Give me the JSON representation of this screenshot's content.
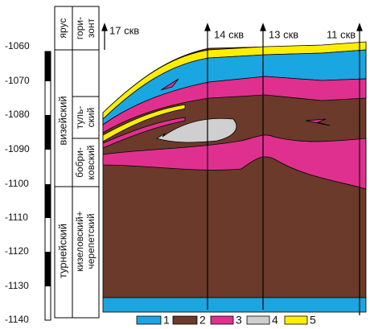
{
  "depth_axis": {
    "labels": [
      "-1060",
      "-1070",
      "-1080",
      "-1090",
      "-1100",
      "-1110",
      "-1120",
      "-1130",
      "-1140"
    ]
  },
  "table": {
    "stage_header": "ярус",
    "horizon_header": [
      "гори-",
      "зонт"
    ],
    "stages": [
      "визейский",
      "турнейский"
    ],
    "horizons": [
      [
        "туль-",
        "ский"
      ],
      [
        "бобри-",
        "ковский"
      ],
      [
        "кизеловский+",
        "черепетский"
      ]
    ]
  },
  "wells": [
    "17 скв",
    "14 скв",
    "13 скв",
    "11 скв"
  ],
  "legend": [
    "1",
    "2",
    "3",
    "4",
    "5"
  ]
}
